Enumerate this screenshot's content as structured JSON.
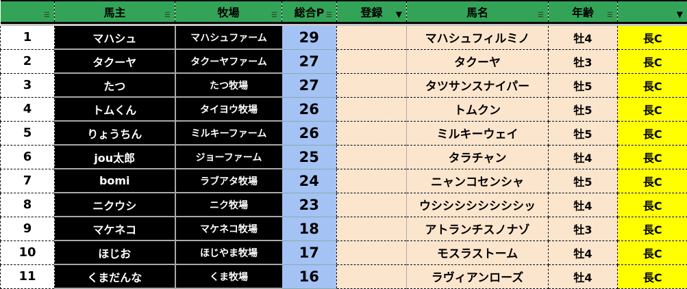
{
  "headers": [
    "",
    "馬主",
    "牧場",
    "総合P",
    "登録",
    "馬名",
    "年齢",
    ""
  ],
  "filters": [
    "filter-icon",
    "filter-icon",
    "filter-icon",
    "filter-icon",
    "filter-active-icon",
    "filter-icon",
    "filter-icon",
    "filter-active-icon"
  ],
  "colors": {
    "header": "#33a457",
    "owner_bg": "#000000",
    "points_bg": "#a4c2f4",
    "horse_bg": "#fce5cd",
    "dist_bg": "#ffff00"
  },
  "rows": [
    {
      "no": "1",
      "owner": "マハシュ",
      "farm": "マハシュファーム",
      "points": "29",
      "reg": "",
      "horse": "マハシュフィルミノ",
      "age": "牡4",
      "dist": "長C"
    },
    {
      "no": "2",
      "owner": "タクーヤ",
      "farm": "タクーヤファーム",
      "points": "27",
      "reg": "",
      "horse": "タクーヤ",
      "age": "牡3",
      "dist": "長C"
    },
    {
      "no": "3",
      "owner": "たつ",
      "farm": "たつ牧場",
      "points": "27",
      "reg": "",
      "horse": "タツサンスナイパー",
      "age": "牡5",
      "dist": "長C"
    },
    {
      "no": "4",
      "owner": "トムくん",
      "farm": "タイヨウ牧場",
      "points": "26",
      "reg": "",
      "horse": "トムクン",
      "age": "牡5",
      "dist": "長C"
    },
    {
      "no": "5",
      "owner": "りょうちん",
      "farm": "ミルキーファーム",
      "points": "26",
      "reg": "",
      "horse": "ミルキーウェイ",
      "age": "牡5",
      "dist": "長C"
    },
    {
      "no": "6",
      "owner": "jou太郎",
      "farm": "ジョーファーム",
      "points": "25",
      "reg": "",
      "horse": "タラチャン",
      "age": "牡4",
      "dist": "長C"
    },
    {
      "no": "7",
      "owner": "bomi",
      "farm": "ラブアタ牧場",
      "points": "24",
      "reg": "",
      "horse": "ニャンコセンシャ",
      "age": "牡5",
      "dist": "長C"
    },
    {
      "no": "8",
      "owner": "ニクウシ",
      "farm": "ニク牧場",
      "points": "23",
      "reg": "",
      "horse": "ウシシシシシシシシッ",
      "age": "牡4",
      "dist": "長C"
    },
    {
      "no": "9",
      "owner": "マケネコ",
      "farm": "マケネコ牧場",
      "points": "18",
      "reg": "",
      "horse": "アトランチスノナゾ",
      "age": "牡3",
      "dist": "長C"
    },
    {
      "no": "10",
      "owner": "ほじお",
      "farm": "ほじやま牧場",
      "points": "17",
      "reg": "",
      "horse": "モスラストーム",
      "age": "牡4",
      "dist": "長C"
    },
    {
      "no": "11",
      "owner": "くまだんな",
      "farm": "くま牧場",
      "points": "16",
      "reg": "",
      "horse": "ラヴィアンローズ",
      "age": "牡4",
      "dist": "長C"
    }
  ]
}
